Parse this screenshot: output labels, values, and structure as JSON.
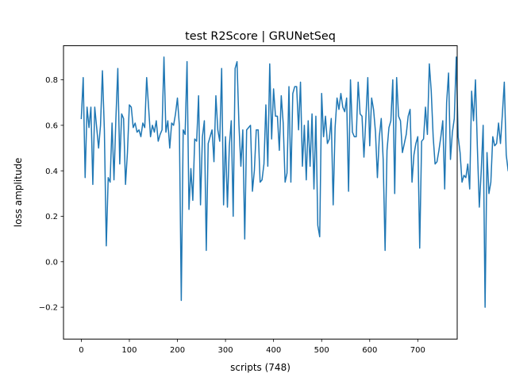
{
  "chart_data": {
    "type": "line",
    "title": "test R2Score | GRUNetSeq",
    "xlabel": "scripts (748)",
    "ylabel": "loss amplitude",
    "xlim": [
      -37,
      782
    ],
    "ylim": [
      -0.34,
      0.95
    ],
    "x_ticks": [
      0,
      100,
      200,
      300,
      400,
      500,
      600,
      700
    ],
    "y_ticks": [
      -0.2,
      0.0,
      0.2,
      0.4,
      0.6,
      0.8
    ],
    "y_tick_labels": [
      "−0.2",
      "0.0",
      "0.2",
      "0.4",
      "0.6",
      "0.8"
    ],
    "grid": false,
    "line_color": "#1f77b4",
    "series": [
      {
        "x_start": 0,
        "x_step": 4,
        "values": [
          0.63,
          0.81,
          0.37,
          0.68,
          0.59,
          0.68,
          0.34,
          0.68,
          0.59,
          0.5,
          0.6,
          0.84,
          0.58,
          0.07,
          0.37,
          0.35,
          0.61,
          0.36,
          0.63,
          0.85,
          0.43,
          0.65,
          0.63,
          0.34,
          0.48,
          0.69,
          0.68,
          0.59,
          0.61,
          0.57,
          0.58,
          0.55,
          0.61,
          0.59,
          0.81,
          0.68,
          0.55,
          0.6,
          0.57,
          0.62,
          0.53,
          0.56,
          0.58,
          0.9,
          0.57,
          0.62,
          0.5,
          0.61,
          0.6,
          0.65,
          0.72,
          0.6,
          -0.17,
          0.58,
          0.56,
          0.88,
          0.23,
          0.41,
          0.27,
          0.54,
          0.53,
          0.73,
          0.25,
          0.55,
          0.62,
          0.05,
          0.52,
          0.55,
          0.58,
          0.44,
          0.73,
          0.58,
          0.53,
          0.85,
          0.25,
          0.55,
          0.24,
          0.51,
          0.62,
          0.2,
          0.85,
          0.88,
          0.6,
          0.42,
          0.58,
          0.1,
          0.58,
          0.59,
          0.6,
          0.31,
          0.4,
          0.58,
          0.58,
          0.35,
          0.36,
          0.43,
          0.69,
          0.42,
          0.87,
          0.54,
          0.76,
          0.64,
          0.64,
          0.49,
          0.73,
          0.61,
          0.35,
          0.39,
          0.77,
          0.35,
          0.74,
          0.77,
          0.77,
          0.58,
          0.79,
          0.42,
          0.6,
          0.36,
          0.62,
          0.42,
          0.65,
          0.32,
          0.64,
          0.16,
          0.11,
          0.74,
          0.55,
          0.64,
          0.52,
          0.54,
          0.63,
          0.25,
          0.59,
          0.72,
          0.67,
          0.74,
          0.68,
          0.66,
          0.72,
          0.31,
          0.8,
          0.57,
          0.55,
          0.55,
          0.79,
          0.65,
          0.64,
          0.46,
          0.63,
          0.81,
          0.51,
          0.72,
          0.67,
          0.57,
          0.37,
          0.55,
          0.63,
          0.45,
          0.05,
          0.49,
          0.59,
          0.62,
          0.8,
          0.3,
          0.81,
          0.64,
          0.62,
          0.48,
          0.52,
          0.56,
          0.64,
          0.67,
          0.35,
          0.47,
          0.52,
          0.55,
          0.06,
          0.53,
          0.54,
          0.68,
          0.56,
          0.87,
          0.75,
          0.55,
          0.43,
          0.44,
          0.49,
          0.55,
          0.62,
          0.32,
          0.7,
          0.83,
          0.45,
          0.57,
          0.63,
          0.9,
          0.55,
          0.48,
          0.35,
          0.38,
          0.37,
          0.43,
          0.32,
          0.75,
          0.62,
          0.8,
          0.5,
          0.24,
          0.4,
          0.6,
          -0.2,
          0.48,
          0.3,
          0.35,
          0.55,
          0.51,
          0.52,
          0.61,
          0.52,
          0.65,
          0.79,
          0.47,
          0.4,
          0.51
        ]
      }
    ]
  }
}
